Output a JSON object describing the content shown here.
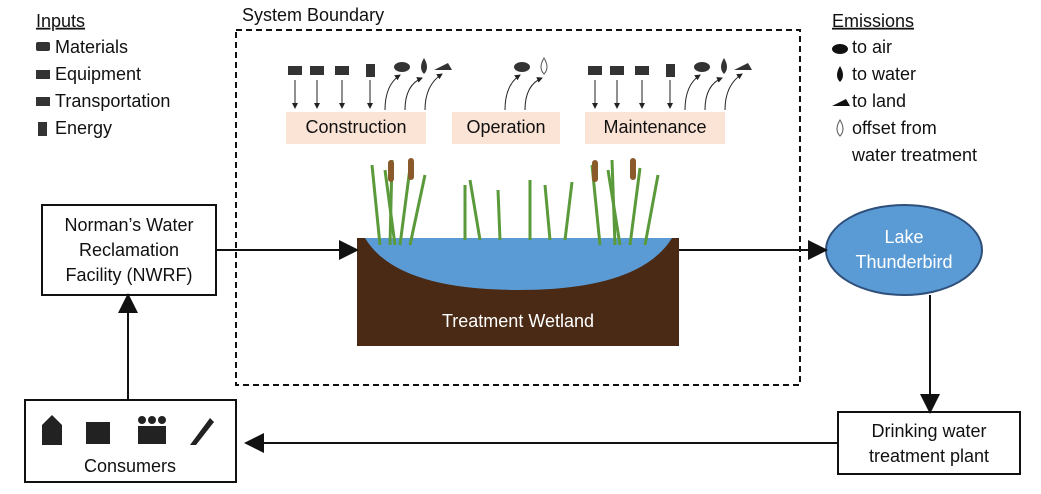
{
  "inputs": {
    "title": "Inputs",
    "items": [
      "Materials",
      "Equipment",
      "Transportation",
      "Energy"
    ]
  },
  "emissions": {
    "title": "Emissions",
    "items": [
      [
        "to air"
      ],
      [
        "to water"
      ],
      [
        "to land"
      ],
      [
        "offset from",
        "water treatment"
      ]
    ]
  },
  "system_boundary": {
    "label": "System Boundary",
    "phases": [
      "Construction",
      "Operation",
      "Maintenance"
    ],
    "wetland": "Treatment Wetland"
  },
  "nodes": [
    {
      "lines": [
        "Norman’s Water",
        "Reclamation",
        "Facility (NWRF)"
      ]
    },
    {
      "lines": [
        "Lake",
        "Thunderbird"
      ]
    },
    {
      "lines": [
        "Drinking water",
        "treatment plant"
      ]
    },
    {
      "lines": [
        "Consumers"
      ]
    }
  ]
}
